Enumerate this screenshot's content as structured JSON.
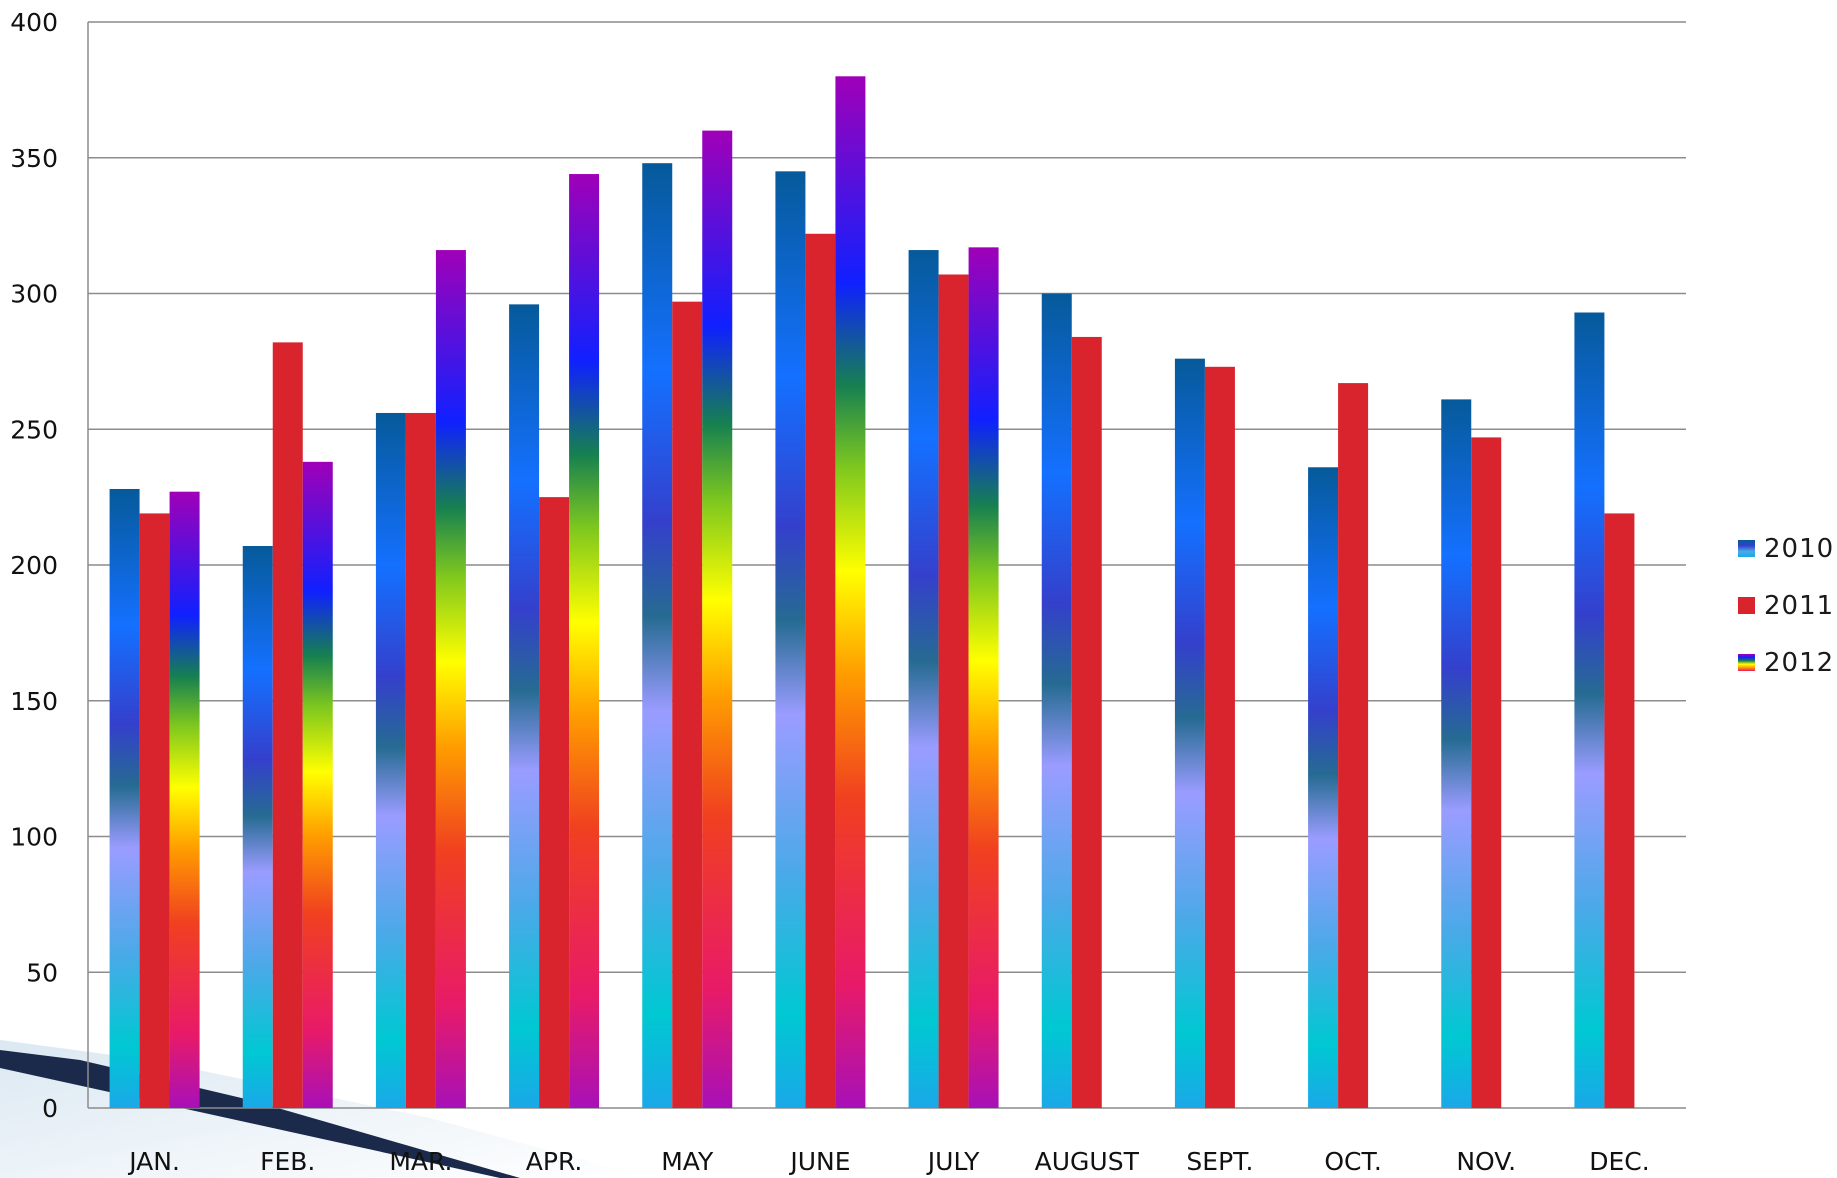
{
  "chart_data": {
    "type": "bar",
    "title": "",
    "xlabel": "",
    "ylabel": "",
    "ylim": [
      0,
      400
    ],
    "yticks": [
      "0",
      "50",
      "100",
      "150",
      "200",
      "250",
      "300",
      "350",
      "400"
    ],
    "grid": true,
    "legend_position": "right",
    "categories": [
      "JAN.",
      "FEB.",
      "MAR.",
      "APR.",
      "MAY",
      "JUNE",
      "JULY",
      "AUGUST",
      "SEPT.",
      "OCT.",
      "NOV.",
      "DEC."
    ],
    "series": [
      {
        "name": "2010",
        "style": "blue-gradient",
        "values": [
          228,
          207,
          256,
          296,
          348,
          345,
          316,
          300,
          276,
          236,
          261,
          293
        ]
      },
      {
        "name": "2011",
        "style": "red",
        "values": [
          219,
          282,
          256,
          225,
          297,
          322,
          307,
          284,
          273,
          267,
          247,
          219
        ]
      },
      {
        "name": "2012",
        "style": "rainbow-gradient",
        "values": [
          227,
          238,
          316,
          344,
          360,
          380,
          317,
          null,
          null,
          null,
          null,
          null
        ]
      }
    ]
  },
  "colors": {
    "series_2011": "#d9232d",
    "gridline": "#8c8c8c",
    "decoration_ribbon": "#1b2a4a"
  }
}
